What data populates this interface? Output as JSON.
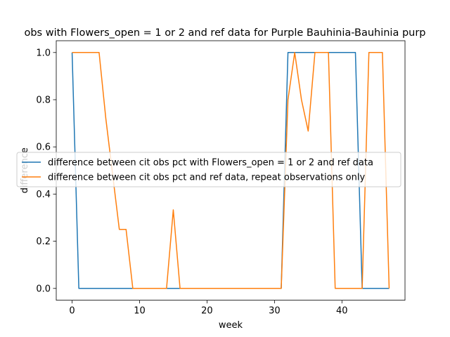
{
  "chart_data": {
    "type": "line",
    "title": "obs with Flowers_open = 1 or 2 and ref data for Purple Bauhinia-Bauhinia purp",
    "xlabel": "week",
    "ylabel": "difference",
    "xlim": [
      -2.35,
      49.35
    ],
    "ylim": [
      -0.05,
      1.05
    ],
    "xticks": [
      0,
      10,
      20,
      30,
      40
    ],
    "yticks": [
      0.0,
      0.2,
      0.4,
      0.6,
      0.8,
      1.0
    ],
    "xtick_labels": [
      "0",
      "10",
      "20",
      "30",
      "40"
    ],
    "ytick_labels": [
      "0.0",
      "0.2",
      "0.4",
      "0.6",
      "0.8",
      "1.0"
    ],
    "grid": false,
    "legend_position": "center-left",
    "series": [
      {
        "name": "difference between cit obs pct with Flowers_open = 1 or 2 and ref data",
        "color": "#1f77b4",
        "x": [
          0,
          1,
          31,
          32,
          42,
          43,
          47
        ],
        "y": [
          1.0,
          0.0,
          0.0,
          1.0,
          1.0,
          0.0,
          0.0
        ]
      },
      {
        "name": "difference between cit obs pct and ref data, repeat observations only",
        "color": "#ff7f0e",
        "x": [
          0,
          4,
          5,
          7,
          8,
          9,
          14,
          15,
          16,
          31,
          32,
          33,
          34,
          35,
          36,
          38,
          39,
          43,
          44,
          46,
          47
        ],
        "y": [
          1.0,
          1.0,
          0.72,
          0.25,
          0.25,
          0.0,
          0.0,
          0.333,
          0.0,
          0.0,
          0.8,
          1.0,
          0.8,
          0.667,
          1.0,
          1.0,
          0.0,
          0.0,
          1.0,
          1.0,
          0.0
        ]
      }
    ]
  }
}
